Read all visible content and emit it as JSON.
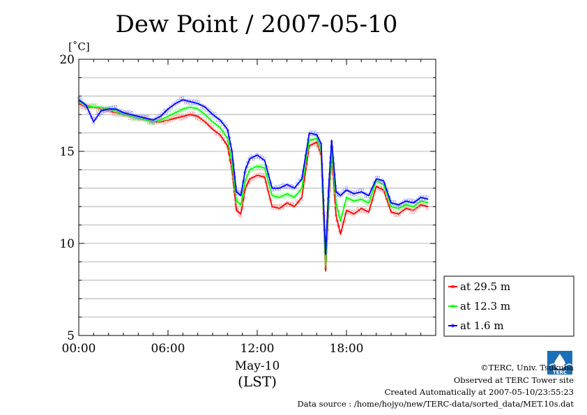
{
  "chart_data": {
    "type": "line",
    "title": "Dew Point / 2007-05-10",
    "ylabel": "[˚C]",
    "xlabel_date": "May-10",
    "xlabel_tz": "(LST)",
    "ylim": [
      5,
      20
    ],
    "xlim_hours": [
      0,
      24
    ],
    "y_ticks": [
      5,
      10,
      15,
      20
    ],
    "y_tick_labels": [
      "5",
      "10",
      "15",
      "20"
    ],
    "x_ticks_hours": [
      0,
      6,
      12,
      18
    ],
    "x_tick_labels": [
      "00:00",
      "06:00",
      "12:00",
      "18:00"
    ],
    "grid": true,
    "legend_placement": "right",
    "series": [
      {
        "name": "at 29.5 m",
        "color": "#ff0000",
        "x_hours": [
          0,
          0.5,
          1.0,
          1.5,
          2.0,
          2.5,
          3.0,
          3.5,
          4.0,
          4.5,
          5.0,
          5.5,
          6.0,
          6.5,
          7.0,
          7.5,
          8.0,
          8.5,
          9.0,
          9.5,
          10.0,
          10.3,
          10.6,
          10.9,
          11.2,
          11.5,
          12.0,
          12.5,
          13.0,
          13.5,
          14.0,
          14.5,
          15.0,
          15.5,
          16.0,
          16.3,
          16.6,
          16.8,
          17.0,
          17.3,
          17.6,
          18.0,
          18.5,
          19.0,
          19.5,
          20.0,
          20.5,
          21.0,
          21.5,
          22.0,
          22.5,
          23.0,
          23.5
        ],
        "values": [
          17.6,
          17.4,
          17.4,
          17.3,
          17.2,
          17.1,
          17.0,
          16.9,
          16.8,
          16.7,
          16.6,
          16.6,
          16.7,
          16.8,
          16.9,
          17.0,
          16.9,
          16.6,
          16.2,
          15.9,
          15.3,
          14.0,
          11.8,
          11.6,
          13.0,
          13.5,
          13.7,
          13.6,
          12.0,
          11.9,
          12.2,
          12.0,
          12.5,
          15.3,
          15.5,
          14.8,
          8.5,
          12.0,
          14.8,
          11.5,
          10.5,
          11.8,
          11.6,
          11.9,
          11.7,
          13.1,
          12.9,
          11.7,
          11.6,
          11.9,
          11.8,
          12.1,
          12.0
        ]
      },
      {
        "name": "at 12.3 m",
        "color": "#00ff00",
        "x_hours": [
          0,
          0.5,
          1.0,
          1.5,
          2.0,
          2.5,
          3.0,
          3.5,
          4.0,
          4.5,
          5.0,
          5.5,
          6.0,
          6.5,
          7.0,
          7.5,
          8.0,
          8.5,
          9.0,
          9.5,
          10.0,
          10.3,
          10.6,
          10.9,
          11.2,
          11.5,
          12.0,
          12.5,
          13.0,
          13.5,
          14.0,
          14.5,
          15.0,
          15.5,
          16.0,
          16.3,
          16.6,
          16.8,
          17.0,
          17.3,
          17.6,
          18.0,
          18.5,
          19.0,
          19.5,
          20.0,
          20.5,
          21.0,
          21.5,
          22.0,
          22.5,
          23.0,
          23.5
        ],
        "values": [
          17.7,
          17.5,
          17.4,
          17.4,
          17.3,
          17.2,
          17.0,
          16.9,
          16.8,
          16.7,
          16.6,
          16.7,
          16.9,
          17.1,
          17.3,
          17.4,
          17.3,
          17.0,
          16.6,
          16.3,
          15.7,
          14.4,
          12.3,
          12.1,
          13.4,
          14.0,
          14.2,
          14.1,
          12.6,
          12.5,
          12.7,
          12.5,
          13.0,
          15.6,
          15.7,
          15.1,
          8.8,
          12.4,
          15.1,
          12.2,
          11.2,
          12.5,
          12.3,
          12.4,
          12.2,
          13.4,
          13.2,
          12.0,
          11.9,
          12.1,
          12.0,
          12.3,
          12.2
        ]
      },
      {
        "name": "at 1.6 m",
        "color": "#0000ff",
        "x_hours": [
          0,
          0.5,
          1.0,
          1.5,
          2.0,
          2.5,
          3.0,
          3.5,
          4.0,
          4.5,
          5.0,
          5.5,
          6.0,
          6.5,
          7.0,
          7.5,
          8.0,
          8.5,
          9.0,
          9.5,
          10.0,
          10.3,
          10.6,
          10.9,
          11.2,
          11.5,
          12.0,
          12.5,
          13.0,
          13.5,
          14.0,
          14.5,
          15.0,
          15.5,
          16.0,
          16.3,
          16.6,
          16.8,
          17.0,
          17.3,
          17.6,
          18.0,
          18.5,
          19.0,
          19.5,
          20.0,
          20.5,
          21.0,
          21.5,
          22.0,
          22.5,
          23.0,
          23.5
        ],
        "values": [
          17.8,
          17.5,
          16.6,
          17.2,
          17.3,
          17.3,
          17.1,
          17.0,
          16.9,
          16.8,
          16.7,
          16.9,
          17.3,
          17.6,
          17.8,
          17.7,
          17.6,
          17.4,
          17.0,
          16.7,
          16.2,
          15.0,
          12.8,
          12.6,
          14.0,
          14.6,
          14.8,
          14.5,
          13.0,
          13.0,
          13.2,
          13.0,
          13.5,
          16.0,
          15.9,
          15.4,
          9.4,
          13.0,
          15.6,
          12.8,
          12.6,
          12.9,
          12.7,
          12.8,
          12.6,
          13.5,
          13.4,
          12.2,
          12.1,
          12.3,
          12.2,
          12.5,
          12.4
        ]
      }
    ]
  },
  "credits": {
    "copyright": "©TERC, Univ. Tsukuba",
    "observed": "Observed at TERC Tower site",
    "created": "Created Automatically at 2007-05-10/23:55:23",
    "source": "Data source : /home/hojyo/new/TERC-data/sorted_data/MET.10s.dat",
    "logo_text": "TERC"
  }
}
